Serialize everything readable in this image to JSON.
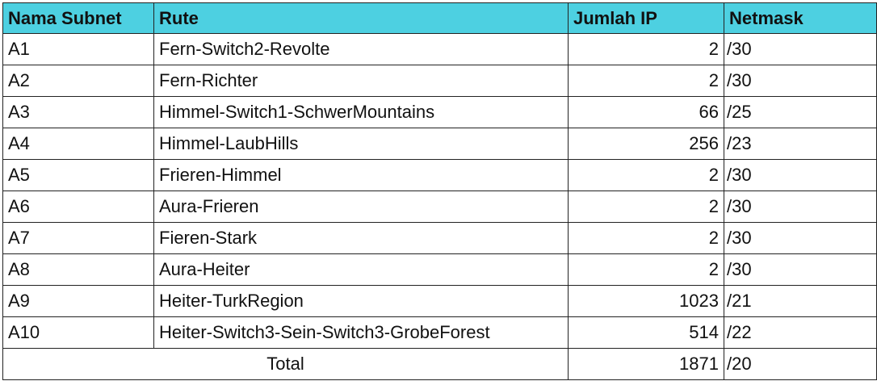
{
  "colors": {
    "header_bg": "#4dd0e1",
    "border": "#222222",
    "text": "#111111"
  },
  "table": {
    "headers": [
      "Nama Subnet",
      "Rute",
      "Jumlah IP",
      "Netmask"
    ],
    "rows": [
      [
        "A1",
        "Fern-Switch2-Revolte",
        "2",
        "/30"
      ],
      [
        "A2",
        "Fern-Richter",
        "2",
        "/30"
      ],
      [
        "A3",
        "Himmel-Switch1-SchwerMountains",
        "66",
        "/25"
      ],
      [
        "A4",
        "Himmel-LaubHills",
        "256",
        "/23"
      ],
      [
        "A5",
        "Frieren-Himmel",
        "2",
        "/30"
      ],
      [
        "A6",
        "Aura-Frieren",
        "2",
        "/30"
      ],
      [
        "A7",
        "Fieren-Stark",
        "2",
        "/30"
      ],
      [
        "A8",
        "Aura-Heiter",
        "2",
        "/30"
      ],
      [
        "A9",
        "Heiter-TurkRegion",
        "1023",
        "/21"
      ],
      [
        "A10",
        "Heiter-Switch3-Sein-Switch3-GrobeForest",
        "514",
        "/22"
      ]
    ],
    "total": {
      "label": "Total",
      "ip": "1871",
      "netmask": "/20"
    }
  }
}
